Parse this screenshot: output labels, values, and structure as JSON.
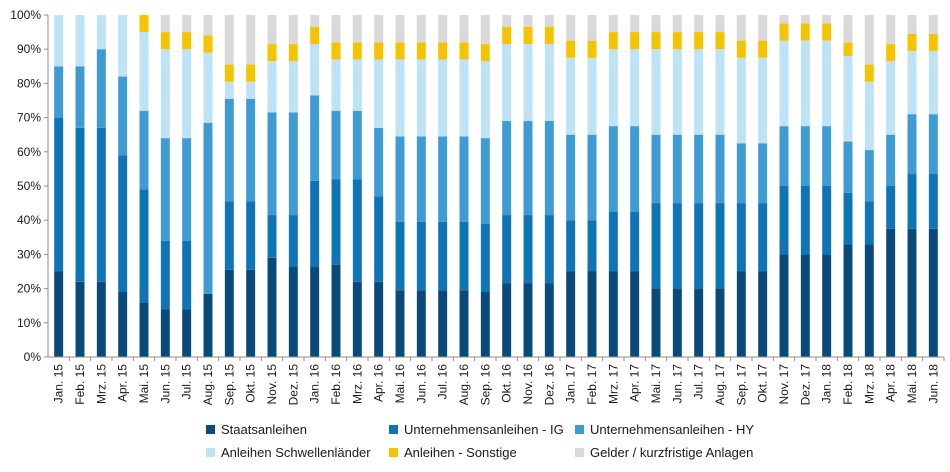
{
  "chart_data": {
    "type": "bar",
    "stacked": true,
    "percent_axis": true,
    "ylim": [
      0,
      100
    ],
    "yticks": [
      0,
      10,
      20,
      30,
      40,
      50,
      60,
      70,
      80,
      90,
      100
    ],
    "ytick_labels": [
      "0%",
      "10%",
      "20%",
      "30%",
      "40%",
      "50%",
      "60%",
      "70%",
      "80%",
      "90%",
      "100%"
    ],
    "grid": false,
    "legend_position": "bottom",
    "categories": [
      "Jan. 15",
      "Feb. 15",
      "Mrz. 15",
      "Apr. 15",
      "Mai. 15",
      "Jun. 15",
      "Jul. 15",
      "Aug. 15",
      "Sep. 15",
      "Okt. 15",
      "Nov. 15",
      "Dez. 15",
      "Jan. 16",
      "Feb. 16",
      "Mrz. 16",
      "Apr. 16",
      "Mai. 16",
      "Jun. 16",
      "Jul. 16",
      "Aug. 16",
      "Sep. 16",
      "Okt. 16",
      "Nov. 16",
      "Dez. 16",
      "Jan. 17",
      "Feb. 17",
      "Mrz. 17",
      "Apr. 17",
      "Mai. 17",
      "Jun. 17",
      "Jul. 17",
      "Aug. 17",
      "Sep. 17",
      "Okt. 17",
      "Nov. 17",
      "Dez. 17",
      "Jan. 18",
      "Feb. 18",
      "Mrz. 18",
      "Apr. 18",
      "Mai. 18",
      "Jun. 18"
    ],
    "series": [
      {
        "name": "Staatsanleihen",
        "color": "#0a4a78",
        "values": [
          25,
          22,
          22,
          19,
          16,
          14,
          14,
          18.5,
          25.5,
          25.5,
          29,
          26.5,
          26.5,
          27,
          22,
          22,
          19.5,
          19.5,
          19.5,
          19.5,
          19,
          21.5,
          21.5,
          21.5,
          25,
          25,
          25,
          25,
          20,
          20,
          20,
          20,
          25,
          25,
          30,
          30,
          30,
          33,
          33,
          37.5,
          37.5,
          37.5
        ]
      },
      {
        "name": "Unternehmensanleihen - IG",
        "color": "#0e73b7",
        "values": [
          45,
          45,
          45,
          40,
          33,
          20,
          20,
          0,
          20,
          20,
          12.5,
          15,
          25,
          25,
          30,
          25,
          20,
          20,
          20,
          20,
          20,
          20,
          20,
          20,
          15,
          15,
          17.5,
          17.5,
          25,
          25,
          25,
          25,
          20,
          20,
          20,
          20,
          20,
          15,
          12.5,
          12.5,
          16,
          16
        ]
      },
      {
        "name": "Unternehmensanleihen - HY",
        "color": "#3f9bd3",
        "values": [
          15,
          18,
          23,
          23,
          23,
          30,
          30,
          50,
          30,
          30,
          30,
          30,
          25,
          20,
          20,
          20,
          25,
          25,
          25,
          25,
          25,
          27.5,
          27.5,
          27.5,
          25,
          25,
          25,
          25,
          20,
          20,
          20,
          20,
          17.5,
          17.5,
          17.5,
          17.5,
          17.5,
          15,
          15,
          15,
          17.5,
          17.5
        ]
      },
      {
        "name": "Anleihen Schwellenländer",
        "color": "#bfe3f6",
        "values": [
          15,
          15,
          10,
          18,
          23,
          26,
          26,
          20.5,
          5,
          5,
          15,
          15,
          15,
          15,
          15,
          20,
          22.5,
          22.5,
          22.5,
          22.5,
          22.5,
          22.5,
          22.5,
          22.5,
          22.5,
          22.5,
          22.5,
          22.5,
          25,
          25,
          25,
          25,
          25,
          25,
          25,
          25,
          25,
          25,
          20,
          21.5,
          18.5,
          18.5
        ]
      },
      {
        "name": "Anleihen - Sonstige",
        "color": "#f5c400",
        "values": [
          0,
          0,
          0,
          0,
          5,
          5,
          5,
          5,
          5,
          5,
          5,
          5,
          5,
          5,
          5,
          5,
          5,
          5,
          5,
          5,
          5,
          5,
          5,
          5,
          5,
          5,
          5,
          5,
          5,
          5,
          5,
          5,
          5,
          5,
          5,
          5,
          5,
          4,
          5,
          5,
          5,
          5
        ]
      },
      {
        "name": "Gelder / kurzfristige Anlagen",
        "color": "#d9d9d9",
        "values": [
          0,
          0,
          0,
          0,
          0,
          5,
          5,
          6,
          14.5,
          14.5,
          8.5,
          8.5,
          3.5,
          8,
          8,
          8,
          8,
          8,
          8,
          8,
          8.5,
          3.5,
          3.5,
          3.5,
          7.5,
          7.5,
          5,
          5,
          5,
          5,
          5,
          5,
          7.5,
          7.5,
          2.5,
          2.5,
          2.5,
          8,
          14.5,
          8.5,
          5.5,
          5.5
        ]
      }
    ]
  }
}
